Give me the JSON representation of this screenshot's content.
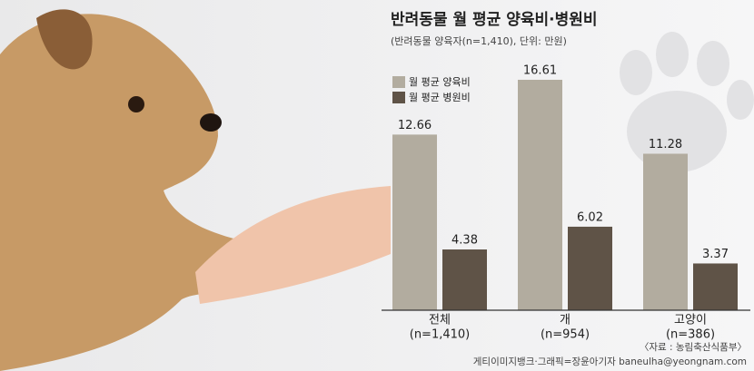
{
  "chart_data": {
    "type": "bar",
    "title": "반려동물 월 평균 양육비·병원비",
    "subtitle": "(반려동물 양육자(n=1,410), 단위: 만원)",
    "categories": [
      "전체",
      "개",
      "고양이"
    ],
    "category_notes": [
      "(n=1,410)",
      "(n=954)",
      "(n=386)"
    ],
    "series": [
      {
        "name": "월 평균 양육비",
        "color": "#b2ac9f",
        "values": [
          12.66,
          16.61,
          11.28
        ]
      },
      {
        "name": "월 평균 병원비",
        "color": "#5f5347",
        "values": [
          4.38,
          6.02,
          3.37
        ]
      }
    ],
    "ylim": [
      0,
      17
    ],
    "source": "〈자료 : 농림축산식품부〉",
    "credit": "게티이미지뱅크·그래픽=장윤아기자 baneulha@yeongnam.com"
  }
}
